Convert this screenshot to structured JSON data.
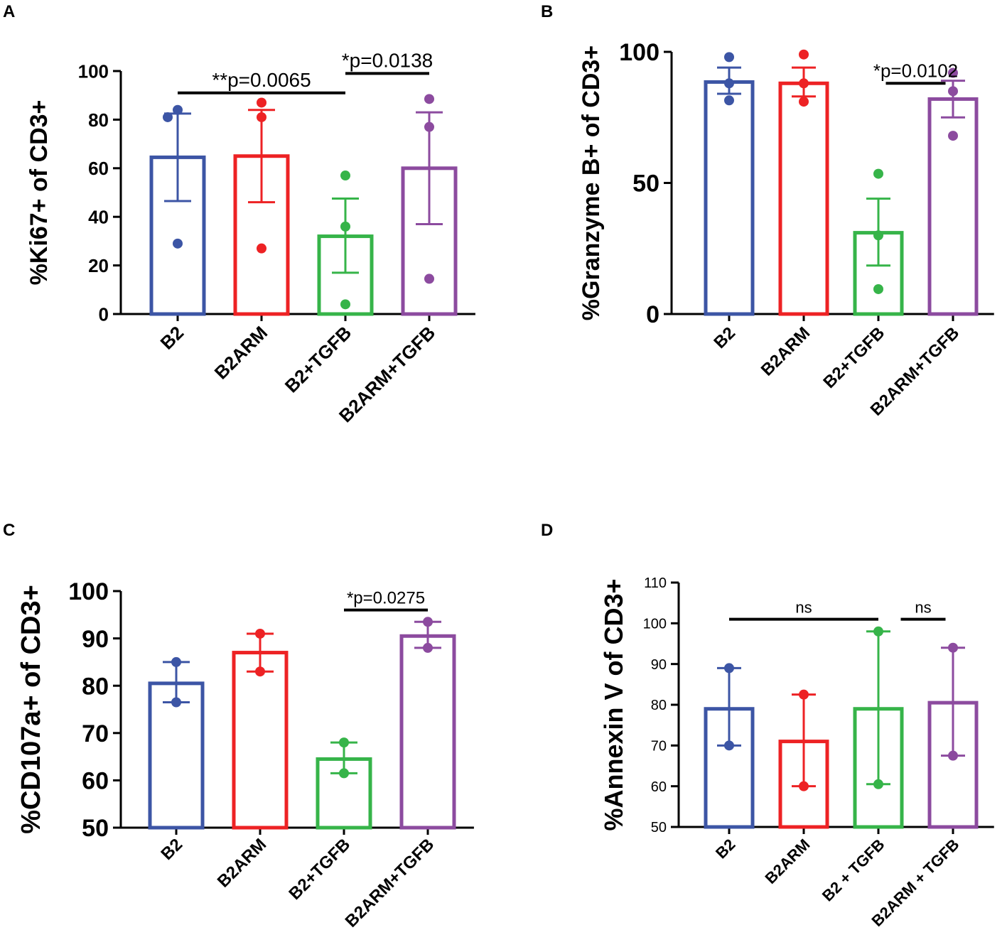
{
  "colors": {
    "blue": "#3c55a5",
    "red": "#ed2224",
    "green": "#36b449",
    "purple": "#8c4b9f",
    "axis": "#000000"
  },
  "chart_data": [
    {
      "type": "bar",
      "panel": "A",
      "ylabel": "%Ki67+ of CD3+",
      "ylim": [
        0,
        100
      ],
      "yticks": [
        0,
        20,
        40,
        60,
        80,
        100
      ],
      "tick_style": "bold",
      "categories": [
        "B2",
        "B2ARM",
        "B2+TGFB",
        "B2ARM+TGFB"
      ],
      "values": [
        64.5,
        65,
        32,
        60
      ],
      "error_low": [
        46.5,
        46,
        17,
        37
      ],
      "error_high": [
        82.5,
        84,
        47.5,
        83
      ],
      "points": [
        [
          84,
          81,
          29
        ],
        [
          87,
          81,
          27
        ],
        [
          57,
          36,
          4
        ],
        [
          88.5,
          77,
          14.5
        ]
      ],
      "comparisons": [
        {
          "from": 0,
          "to": 2,
          "label": "**p=0.0065",
          "y": 91
        },
        {
          "from": 2,
          "to": 3,
          "label": "*p=0.0138",
          "y": 99
        }
      ]
    },
    {
      "type": "bar",
      "panel": "B",
      "ylabel": "%Granzyme B+ of CD3+",
      "ylim": [
        0,
        100
      ],
      "yticks": [
        0,
        50,
        100
      ],
      "tick_style": "bold",
      "categories": [
        "B2",
        "B2ARM",
        "B2+TGFB",
        "B2ARM+TGFB"
      ],
      "values": [
        88.5,
        88,
        31,
        82
      ],
      "error_low": [
        84,
        83,
        18.5,
        75
      ],
      "error_high": [
        94,
        94,
        44,
        89
      ],
      "points": [
        [
          98,
          88,
          81.5
        ],
        [
          99,
          88,
          81
        ],
        [
          53.5,
          30,
          9.5
        ],
        [
          92,
          85,
          68
        ]
      ],
      "comparisons": [
        {
          "from": 2.1,
          "to": 2.9,
          "label": "*p=0.0102",
          "y": 88
        }
      ]
    },
    {
      "type": "bar",
      "panel": "C",
      "ylabel": "%CD107a+ of CD3+",
      "ylim": [
        50,
        100
      ],
      "yticks": [
        50,
        60,
        70,
        80,
        90,
        100
      ],
      "tick_style": "bold",
      "categories": [
        "B2",
        "B2ARM",
        "B2+TGFB",
        "B2ARM+TGFB"
      ],
      "values": [
        80.5,
        87,
        64.5,
        90.5
      ],
      "error_low": [
        76.5,
        83,
        61.5,
        88
      ],
      "error_high": [
        85,
        91,
        68,
        93.5
      ],
      "points": [
        [
          85,
          76.5
        ],
        [
          91,
          83
        ],
        [
          68,
          61.5
        ],
        [
          93.5,
          88
        ]
      ],
      "comparisons": [
        {
          "from": 2,
          "to": 3,
          "label": "*p=0.0275",
          "y": 96
        }
      ]
    },
    {
      "type": "bar",
      "panel": "D",
      "ylabel": "%Annexin V of CD3+",
      "ylim": [
        50,
        110
      ],
      "yticks": [
        50,
        60,
        70,
        80,
        90,
        100,
        110
      ],
      "tick_style": "plain",
      "categories": [
        "B2",
        "B2ARM",
        "B2 + TGFB",
        "B2ARM + TGFB"
      ],
      "values": [
        79,
        71,
        79,
        80.5
      ],
      "error_low": [
        70,
        60,
        60.5,
        67.5
      ],
      "error_high": [
        89,
        82.5,
        98,
        94
      ],
      "points": [
        [
          89,
          70
        ],
        [
          82.5,
          60
        ],
        [
          98,
          60.5
        ],
        [
          94,
          67.5
        ]
      ],
      "comparisons": [
        {
          "from": 0,
          "to": 2,
          "label": "ns",
          "y": 101
        },
        {
          "from": 2.3,
          "to": 2.9,
          "label": "ns",
          "y": 101
        }
      ]
    }
  ]
}
